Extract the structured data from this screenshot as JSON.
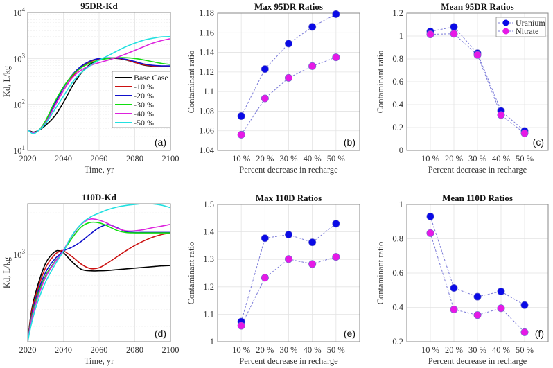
{
  "figure": {
    "series_names": [
      "Uranium",
      "Nitrate"
    ],
    "series_colors": {
      "Uranium": "#0a0ae6",
      "Nitrate": "#e619e6"
    },
    "connector_color": "#7a7ad8"
  },
  "chart_data": [
    {
      "id": "a",
      "type": "line",
      "title": "95DR-Kd",
      "panel_tag": "(a)",
      "xlabel": "Time, yr",
      "ylabel": "Kd, L/kg",
      "yscale": "log",
      "xlim": [
        2020,
        2100
      ],
      "ylim": [
        10,
        10000
      ],
      "xticks": [
        2020,
        2040,
        2060,
        2080,
        2100
      ],
      "xtick_labels": [
        "2020",
        "2040",
        "2060",
        "2080",
        "2100"
      ],
      "yticks": [
        10,
        100,
        1000,
        10000
      ],
      "ytick_labels": [
        {
          "base": "10",
          "exp": "1"
        },
        {
          "base": "10",
          "exp": "2"
        },
        {
          "base": "10",
          "exp": "3"
        },
        {
          "base": "10",
          "exp": "4"
        }
      ],
      "grid": true,
      "legend": {
        "placement": "right-middle",
        "entries": [
          "Base Case",
          "-10 %",
          "-20 %",
          "-30 %",
          "-40 %",
          "-50 %"
        ]
      },
      "x": [
        2020,
        2023,
        2026,
        2030,
        2035,
        2040,
        2045,
        2050,
        2055,
        2060,
        2065,
        2070,
        2075,
        2080,
        2085,
        2090,
        2095,
        2100
      ],
      "series": [
        {
          "name": "Base Case",
          "color": "#000000",
          "values": [
            28,
            25,
            27,
            35,
            55,
            110,
            250,
            480,
            750,
            930,
            1000,
            1000,
            930,
            820,
            720,
            680,
            670,
            670
          ]
        },
        {
          "name": "-10 %",
          "color": "#cc1111",
          "values": [
            28,
            24,
            27,
            40,
            90,
            200,
            400,
            640,
            850,
            980,
            1020,
            1010,
            940,
            820,
            730,
            690,
            680,
            680
          ]
        },
        {
          "name": "-20 %",
          "color": "#1111cc",
          "values": [
            28,
            24,
            27,
            42,
            100,
            230,
            440,
            680,
            880,
            1000,
            1030,
            1020,
            960,
            860,
            760,
            710,
            690,
            690
          ]
        },
        {
          "name": "-30 %",
          "color": "#11dd11",
          "values": [
            28,
            24,
            27,
            44,
            110,
            240,
            430,
            630,
            800,
            920,
            1000,
            1040,
            1040,
            1000,
            930,
            850,
            780,
            740
          ]
        },
        {
          "name": "-40 %",
          "color": "#dd22dd",
          "values": [
            28,
            24,
            27,
            40,
            90,
            200,
            380,
            560,
            700,
            810,
            920,
            1060,
            1250,
            1500,
            1800,
            2150,
            2450,
            2700
          ]
        },
        {
          "name": "-50 %",
          "color": "#22e0e0",
          "values": [
            28,
            23,
            27,
            38,
            75,
            150,
            300,
            490,
            700,
            920,
            1150,
            1450,
            1800,
            2150,
            2500,
            2750,
            2950,
            3000
          ]
        }
      ]
    },
    {
      "id": "b",
      "type": "line",
      "title": "Max 95DR Ratios",
      "panel_tag": "(b)",
      "xlabel": "Percent decrease in recharge",
      "ylabel": "Contaminant ratio",
      "categories": [
        "10 %",
        "20 %",
        "30 %",
        "40 %",
        "50 %"
      ],
      "ylim": [
        1.04,
        1.18
      ],
      "yticks": [
        1.04,
        1.06,
        1.08,
        1.1,
        1.12,
        1.14,
        1.16,
        1.18
      ],
      "ytick_labels": [
        "1.04",
        "1.06",
        "1.08",
        "1.1",
        "1.12",
        "1.14",
        "1.16",
        "1.18"
      ],
      "grid": true,
      "series": [
        {
          "name": "Uranium",
          "values": [
            1.075,
            1.123,
            1.149,
            1.166,
            1.179
          ]
        },
        {
          "name": "Nitrate",
          "values": [
            1.056,
            1.093,
            1.114,
            1.126,
            1.135
          ]
        }
      ]
    },
    {
      "id": "c",
      "type": "line",
      "title": "Mean 95DR Ratios",
      "panel_tag": "(c)",
      "xlabel": "Percent decrease in recharge",
      "ylabel": "Contaminant ratio",
      "categories": [
        "10 %",
        "20 %",
        "30 %",
        "40 %",
        "50 %"
      ],
      "ylim": [
        0,
        1.2
      ],
      "yticks": [
        0,
        0.2,
        0.4,
        0.6,
        0.8,
        1,
        1.2
      ],
      "ytick_labels": [
        "0",
        "0.2",
        "0.4",
        "0.6",
        "0.8",
        "1",
        "1.2"
      ],
      "grid": true,
      "legend": {
        "placement": "top-right",
        "entries": [
          "Uranium",
          "Nitrate"
        ]
      },
      "series": [
        {
          "name": "Uranium",
          "values": [
            1.04,
            1.08,
            0.85,
            0.345,
            0.17
          ]
        },
        {
          "name": "Nitrate",
          "values": [
            1.015,
            1.02,
            0.835,
            0.31,
            0.15
          ]
        }
      ]
    },
    {
      "id": "d",
      "type": "line",
      "title": "110D-Kd",
      "panel_tag": "(d)",
      "xlabel": "Time, yr",
      "ylabel": "Kd, L/kg",
      "yscale": "log",
      "xlim": [
        2020,
        2100
      ],
      "ylim": [
        233,
        2325
      ],
      "xticks": [
        2020,
        2040,
        2060,
        2080,
        2100
      ],
      "xtick_labels": [
        "2020",
        "2040",
        "2060",
        "2080",
        "2100"
      ],
      "yticks": [
        1000
      ],
      "ytick_labels": [
        {
          "base": "10",
          "exp": "3"
        }
      ],
      "grid": true,
      "x": [
        2020,
        2022,
        2025,
        2030,
        2035,
        2038,
        2040,
        2045,
        2050,
        2055,
        2060,
        2065,
        2070,
        2075,
        2080,
        2085,
        2090,
        2095,
        2100
      ],
      "series": [
        {
          "name": "Base Case",
          "color": "#000000",
          "values": [
            233,
            380,
            560,
            860,
            1040,
            1060,
            1030,
            880,
            780,
            760,
            760,
            765,
            775,
            785,
            795,
            805,
            815,
            825,
            830
          ]
        },
        {
          "name": "-10 %",
          "color": "#cc1111",
          "values": [
            233,
            370,
            530,
            800,
            990,
            1050,
            1060,
            960,
            850,
            790,
            800,
            870,
            960,
            1060,
            1160,
            1250,
            1330,
            1390,
            1430
          ]
        },
        {
          "name": "-20 %",
          "color": "#1111cc",
          "values": [
            233,
            350,
            500,
            740,
            920,
            1000,
            1060,
            1130,
            1240,
            1400,
            1560,
            1640,
            1560,
            1460,
            1440,
            1440,
            1440,
            1440,
            1440
          ]
        },
        {
          "name": "-30 %",
          "color": "#11dd11",
          "values": [
            233,
            340,
            480,
            700,
            880,
            980,
            1060,
            1320,
            1580,
            1700,
            1690,
            1600,
            1490,
            1440,
            1430,
            1430,
            1430,
            1430,
            1430
          ]
        },
        {
          "name": "-40 %",
          "color": "#dd22dd",
          "values": [
            233,
            330,
            460,
            680,
            870,
            980,
            1070,
            1370,
            1650,
            1800,
            1770,
            1670,
            1550,
            1480,
            1480,
            1510,
            1560,
            1600,
            1650
          ]
        },
        {
          "name": "-50 %",
          "color": "#22e0e0",
          "values": [
            233,
            310,
            430,
            630,
            830,
            960,
            1050,
            1380,
            1660,
            1860,
            1990,
            2110,
            2200,
            2260,
            2300,
            2325,
            2320,
            2270,
            2180
          ]
        }
      ]
    },
    {
      "id": "e",
      "type": "line",
      "title": "Max 110D Ratios",
      "panel_tag": "(e)",
      "xlabel": "Percent decrease in recharge",
      "ylabel": "Contaminant ratio",
      "categories": [
        "10 %",
        "20 %",
        "30 %",
        "40 %",
        "50 %"
      ],
      "ylim": [
        1,
        1.5
      ],
      "yticks": [
        1,
        1.1,
        1.2,
        1.3,
        1.4,
        1.5
      ],
      "ytick_labels": [
        "1",
        "1.1",
        "1.2",
        "1.3",
        "1.4",
        "1.5"
      ],
      "grid": true,
      "series": [
        {
          "name": "Uranium",
          "values": [
            1.073,
            1.377,
            1.39,
            1.362,
            1.43
          ]
        },
        {
          "name": "Nitrate",
          "values": [
            1.058,
            1.233,
            1.301,
            1.283,
            1.309
          ]
        }
      ]
    },
    {
      "id": "f",
      "type": "line",
      "title": "Mean 110D Ratios",
      "panel_tag": "(f)",
      "xlabel": "Percent decrease in recharge",
      "ylabel": "Contaminant ratio",
      "categories": [
        "10 %",
        "20 %",
        "30 %",
        "40 %",
        "50 %"
      ],
      "ylim": [
        0.2,
        1
      ],
      "yticks": [
        0.2,
        0.4,
        0.6,
        0.8,
        1
      ],
      "ytick_labels": [
        "0.2",
        "0.4",
        "0.6",
        "0.8",
        "1"
      ],
      "grid": true,
      "series": [
        {
          "name": "Uranium",
          "values": [
            0.93,
            0.513,
            0.462,
            0.493,
            0.413
          ]
        },
        {
          "name": "Nitrate",
          "values": [
            0.833,
            0.388,
            0.355,
            0.395,
            0.255
          ]
        }
      ]
    }
  ]
}
